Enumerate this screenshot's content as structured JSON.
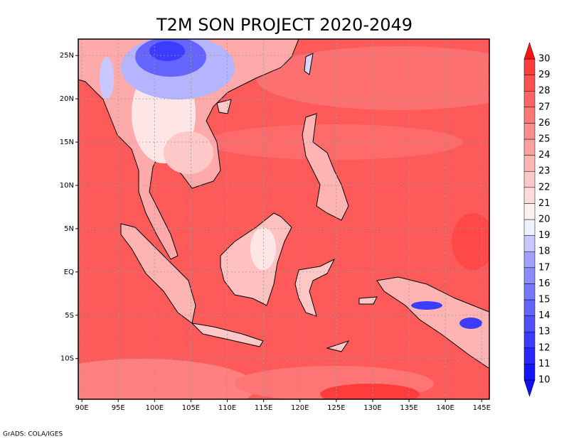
{
  "title": "T2M SON PROJECT 2020-2049",
  "credit": "GrADS: COLA/IGES",
  "map": {
    "lon_range": [
      89.5,
      146.05
    ],
    "lat_range": [
      -14.7,
      26.9
    ],
    "lon_ticks": [
      {
        "value": 90,
        "label": "90E"
      },
      {
        "value": 95,
        "label": "95E"
      },
      {
        "value": 100,
        "label": "100E"
      },
      {
        "value": 105,
        "label": "105E"
      },
      {
        "value": 110,
        "label": "110E"
      },
      {
        "value": 115,
        "label": "115E"
      },
      {
        "value": 120,
        "label": "120E"
      },
      {
        "value": 125,
        "label": "125E"
      },
      {
        "value": 130,
        "label": "130E"
      },
      {
        "value": 135,
        "label": "135E"
      },
      {
        "value": 140,
        "label": "140E"
      },
      {
        "value": 145,
        "label": "145E"
      }
    ],
    "lat_ticks": [
      {
        "value": 25,
        "label": "25N"
      },
      {
        "value": 20,
        "label": "20N"
      },
      {
        "value": 15,
        "label": "15N"
      },
      {
        "value": 10,
        "label": "10N"
      },
      {
        "value": 5,
        "label": "5N"
      },
      {
        "value": 0,
        "label": "EQ"
      },
      {
        "value": -5,
        "label": "5S"
      },
      {
        "value": -10,
        "label": "10S"
      }
    ]
  },
  "colorbar": {
    "levels": [
      10,
      11,
      12,
      13,
      14,
      15,
      16,
      17,
      18,
      19,
      20,
      21,
      22,
      23,
      24,
      25,
      26,
      27,
      28,
      29,
      30
    ],
    "colors": [
      "#1010f0",
      "#1414ff",
      "#2828ff",
      "#3c3cff",
      "#5050ff",
      "#6464ff",
      "#7878ff",
      "#8c8cff",
      "#a0a0ff",
      "#c8c8ff",
      "#f0f0ff",
      "#fff0f0",
      "#ffdcdc",
      "#ffc8c8",
      "#ffb4b4",
      "#ffa0a0",
      "#ff8c8c",
      "#ff7878",
      "#ff6464",
      "#ff5050",
      "#ff3c3c",
      "#ff1414"
    ]
  }
}
